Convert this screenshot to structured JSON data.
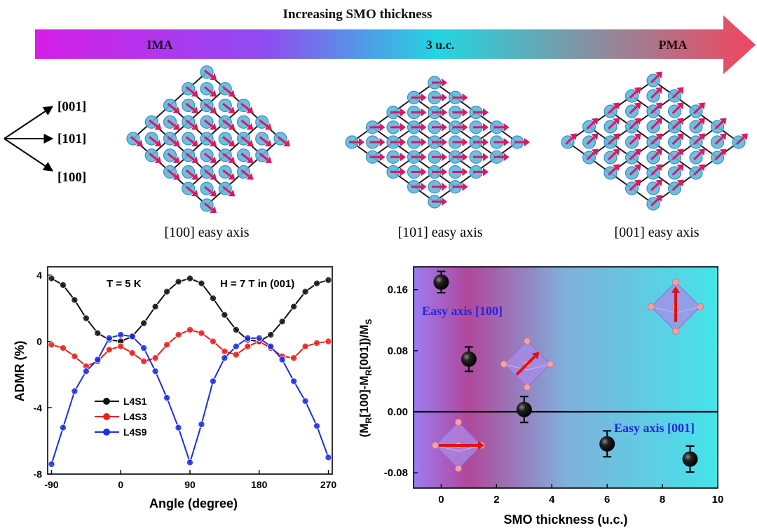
{
  "header": {
    "title": "Increasing SMO thickness",
    "arrow_labels": [
      "IMA",
      "3 u.c.",
      "PMA"
    ],
    "gradient_colors": [
      "#d61ee8",
      "#8f4cf0",
      "#22d6e0",
      "#f2455e"
    ]
  },
  "axes_key": {
    "labels": [
      "[001]",
      "[101]",
      "[100]"
    ]
  },
  "lattices": [
    {
      "caption": "[100] easy axis",
      "spin": "down-right"
    },
    {
      "caption": "[101] easy axis",
      "spin": "right"
    },
    {
      "caption": "[001] easy axis",
      "spin": "up-right"
    }
  ],
  "colors": {
    "atom": "#5fb6de",
    "atom_edge": "#3a8fc0",
    "spin": "#d81b60",
    "bond": "#1a1a1a"
  },
  "chart_data": [
    {
      "type": "line",
      "xlabel": "Angle (degree)",
      "ylabel": "ADMR (%)",
      "xlim": [
        -95,
        275
      ],
      "ylim": [
        -8,
        4.5
      ],
      "xticks": [
        -90,
        0,
        90,
        180,
        270
      ],
      "yticks": [
        4,
        0,
        -4,
        -8
      ],
      "annotations": [
        "T = 5 K",
        "H = 7 T in (001)"
      ],
      "legend_position": "lower-left",
      "x": [
        -90,
        -75,
        -60,
        -45,
        -30,
        -15,
        0,
        15,
        30,
        45,
        60,
        75,
        90,
        105,
        120,
        135,
        150,
        165,
        180,
        195,
        210,
        225,
        240,
        255,
        270
      ],
      "series": [
        {
          "name": "L4S1",
          "color": "#111111",
          "values": [
            3.8,
            3.4,
            2.5,
            1.4,
            0.5,
            0.1,
            0.0,
            0.3,
            1.1,
            2.1,
            3.0,
            3.6,
            3.8,
            3.5,
            2.6,
            1.6,
            0.7,
            0.1,
            0.0,
            0.4,
            1.2,
            2.1,
            3.0,
            3.5,
            3.7
          ]
        },
        {
          "name": "L4S3",
          "color": "#e8201a",
          "values": [
            -0.2,
            -0.4,
            -0.9,
            -1.5,
            -1.2,
            -0.5,
            -0.3,
            -0.7,
            -1.2,
            -1.0,
            -0.2,
            0.4,
            0.7,
            0.5,
            0.0,
            -0.6,
            -0.8,
            -0.3,
            0.0,
            -0.4,
            -0.9,
            -1.0,
            -0.3,
            -0.1,
            0.0
          ]
        },
        {
          "name": "L4S9",
          "color": "#1a2ee6",
          "values": [
            -7.4,
            -5.2,
            -3.0,
            -1.8,
            -1.1,
            0.2,
            0.4,
            0.3,
            -0.4,
            -1.8,
            -3.4,
            -5.2,
            -7.3,
            -5.0,
            -2.4,
            -1.0,
            -0.3,
            0.2,
            0.2,
            -0.3,
            -1.1,
            -2.4,
            -3.6,
            -5.1,
            -7.0
          ]
        }
      ]
    },
    {
      "type": "scatter",
      "xlabel": "SMO thickness (u.c.)",
      "ylabel": "(M_R[100]-M_R[001])/M_S",
      "ylabel_parts": [
        "(M",
        "R",
        "[100]-M",
        "R",
        "[001])/M",
        "S"
      ],
      "xlim": [
        -1,
        10
      ],
      "ylim": [
        -0.1,
        0.19
      ],
      "xticks": [
        0,
        2,
        4,
        6,
        8,
        10
      ],
      "yticks": [
        0.16,
        0.08,
        0.0,
        -0.08
      ],
      "ytick_labels": [
        "0.16",
        "0.08",
        "0.00",
        "-0.08"
      ],
      "annotations": [
        "Easy axis [100]",
        "Easy axis [001]"
      ],
      "background_colors": [
        "#9c7df2",
        "#b0479b",
        "#7fb0dc",
        "#44e4ea"
      ],
      "reference_line": 0,
      "x": [
        0,
        1,
        3,
        6,
        9
      ],
      "values": [
        0.17,
        0.069,
        0.003,
        -0.042,
        -0.062
      ],
      "errors": [
        0.014,
        0.016,
        0.017,
        0.017,
        0.017
      ]
    }
  ]
}
